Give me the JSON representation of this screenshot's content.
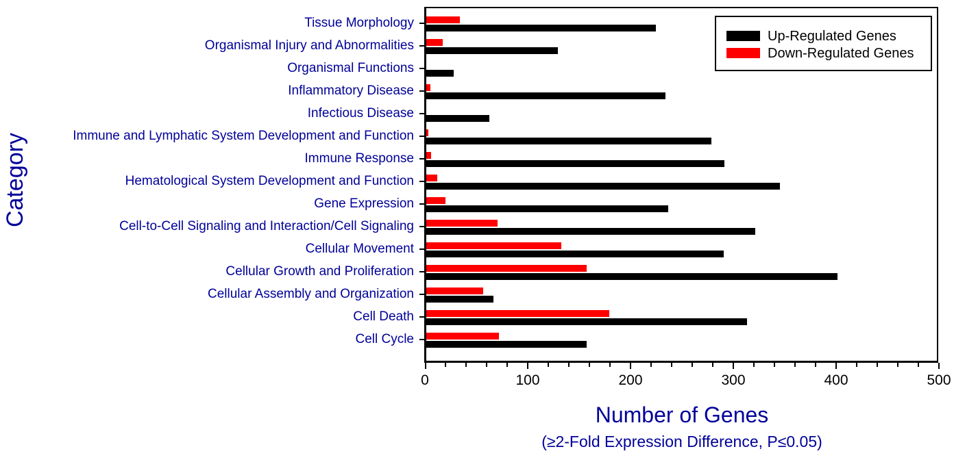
{
  "figure": {
    "y_axis_title": "Category",
    "x_axis_title": "Number of Genes",
    "x_axis_subtitle": "(≥2-Fold Expression Difference, P≤0.05)"
  },
  "legend": {
    "items": [
      {
        "label": "Up-Regulated Genes",
        "color": "#000000"
      },
      {
        "label": "Down-Regulated Genes",
        "color": "#ff0000"
      }
    ]
  },
  "colors": {
    "up_bar": "#000000",
    "down_bar": "#ff0000",
    "axis_text_blue": "#000099",
    "tick_text": "#000000"
  },
  "chart_data": {
    "type": "bar",
    "orientation": "horizontal",
    "xlabel": "Number of Genes",
    "xlabel_note": "(≥2-Fold Expression Difference, P≤0.05)",
    "ylabel": "Category",
    "xlim": [
      0,
      500
    ],
    "x_major_ticks": [
      0,
      100,
      200,
      300,
      400,
      500
    ],
    "x_minor_tick_interval": 20,
    "grid": false,
    "legend_position": "top-right",
    "categories": [
      "Tissue Morphology",
      "Organismal Injury and Abnormalities",
      "Organismal Functions",
      "Inflammatory Disease",
      "Infectious Disease",
      "Immune and Lymphatic System Development and Function",
      "Immune Response",
      "Hematological System Development and Function",
      "Gene Expression",
      "Cell-to-Cell Signaling and Interaction/Cell Signaling",
      "Cellular Movement",
      "Cellular Growth and Proliferation",
      "Cellular Assembly and Organization",
      "Cell Death",
      "Cell Cycle"
    ],
    "series": [
      {
        "name": "Up-Regulated Genes",
        "color": "#000000",
        "values": [
          225,
          129,
          27,
          234,
          62,
          279,
          292,
          346,
          237,
          322,
          291,
          403,
          66,
          314,
          157
        ]
      },
      {
        "name": "Down-Regulated Genes",
        "color": "#ff0000",
        "values": [
          33,
          16,
          0,
          4,
          0,
          2,
          5,
          11,
          19,
          70,
          132,
          157,
          56,
          179,
          71
        ]
      }
    ]
  }
}
